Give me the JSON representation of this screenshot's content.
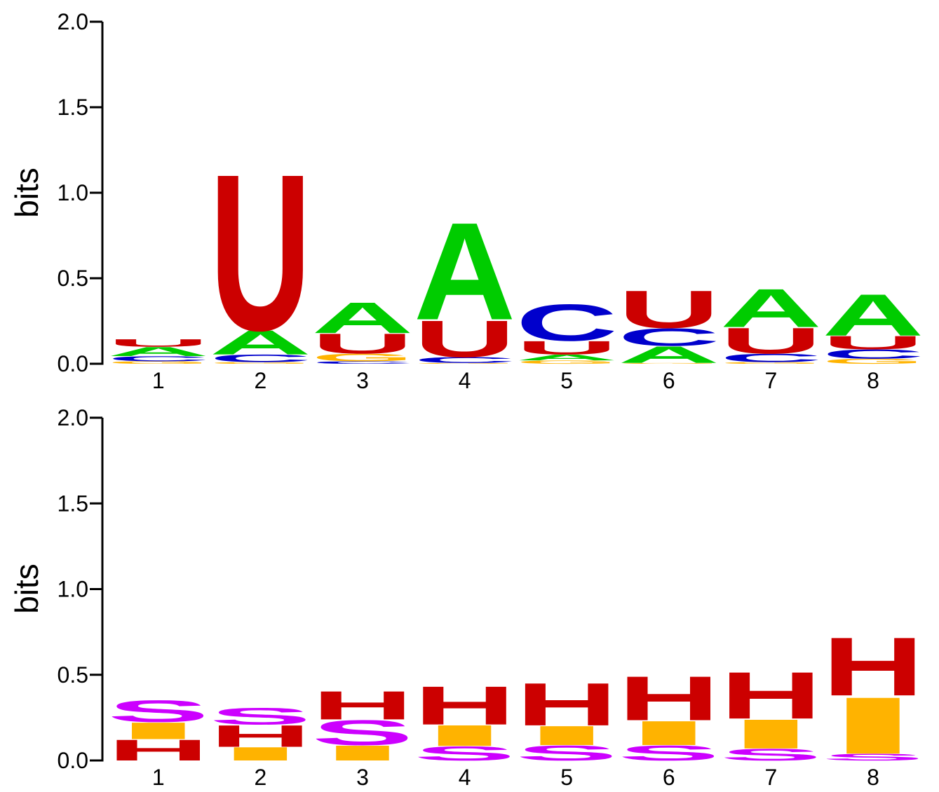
{
  "colors": {
    "A": "#00cc00",
    "C": "#0000cc",
    "G": "#ffb300",
    "U": "#cc0000",
    "H": "#cc0000",
    "I": "#ffb300",
    "S": "#cc00ff"
  },
  "chart_data": [
    {
      "type": "sequence-logo",
      "ylabel": "bits",
      "ylim": [
        0,
        2
      ],
      "yticks": [
        "0.0",
        "0.5",
        "1.0",
        "1.5",
        "2.0"
      ],
      "positions": [
        "1",
        "2",
        "3",
        "4",
        "5",
        "6",
        "7",
        "8"
      ],
      "stacks": [
        [
          {
            "letter": "G",
            "value": 0.015
          },
          {
            "letter": "C",
            "value": 0.03
          },
          {
            "letter": "A",
            "value": 0.055
          },
          {
            "letter": "U",
            "value": 0.045
          }
        ],
        [
          {
            "letter": "G",
            "value": 0.01
          },
          {
            "letter": "C",
            "value": 0.045
          },
          {
            "letter": "A",
            "value": 0.145
          },
          {
            "letter": "U",
            "value": 0.94
          }
        ],
        [
          {
            "letter": "C",
            "value": 0.015
          },
          {
            "letter": "G",
            "value": 0.045
          },
          {
            "letter": "U",
            "value": 0.12
          },
          {
            "letter": "A",
            "value": 0.185
          }
        ],
        [
          {
            "letter": "G",
            "value": 0.005
          },
          {
            "letter": "C",
            "value": 0.035
          },
          {
            "letter": "U",
            "value": 0.22
          },
          {
            "letter": "A",
            "value": 0.585
          }
        ],
        [
          {
            "letter": "G",
            "value": 0.02
          },
          {
            "letter": "A",
            "value": 0.035
          },
          {
            "letter": "U",
            "value": 0.08
          },
          {
            "letter": "C",
            "value": 0.22
          }
        ],
        [
          {
            "letter": "G",
            "value": 0.005
          },
          {
            "letter": "A",
            "value": 0.1
          },
          {
            "letter": "C",
            "value": 0.105
          },
          {
            "letter": "U",
            "value": 0.225
          }
        ],
        [
          {
            "letter": "G",
            "value": 0.01
          },
          {
            "letter": "C",
            "value": 0.05
          },
          {
            "letter": "U",
            "value": 0.155
          },
          {
            "letter": "A",
            "value": 0.23
          }
        ],
        [
          {
            "letter": "G",
            "value": 0.03
          },
          {
            "letter": "C",
            "value": 0.055
          },
          {
            "letter": "U",
            "value": 0.08
          },
          {
            "letter": "A",
            "value": 0.25
          }
        ]
      ]
    },
    {
      "type": "sequence-logo",
      "ylabel": "bits",
      "ylim": [
        0,
        2
      ],
      "yticks": [
        "0.0",
        "0.5",
        "1.0",
        "1.5",
        "2.0"
      ],
      "positions": [
        "1",
        "2",
        "3",
        "4",
        "5",
        "6",
        "7",
        "8"
      ],
      "stacks": [
        [
          {
            "letter": "H",
            "value": 0.125
          },
          {
            "letter": "I",
            "value": 0.1
          },
          {
            "letter": "S",
            "value": 0.13
          }
        ],
        [
          {
            "letter": "I",
            "value": 0.08
          },
          {
            "letter": "H",
            "value": 0.13
          },
          {
            "letter": "S",
            "value": 0.1
          }
        ],
        [
          {
            "letter": "I",
            "value": 0.09
          },
          {
            "letter": "S",
            "value": 0.15
          },
          {
            "letter": "H",
            "value": 0.17
          }
        ],
        [
          {
            "letter": "S",
            "value": 0.085
          },
          {
            "letter": "I",
            "value": 0.125
          },
          {
            "letter": "H",
            "value": 0.23
          }
        ],
        [
          {
            "letter": "S",
            "value": 0.09
          },
          {
            "letter": "I",
            "value": 0.115
          },
          {
            "letter": "H",
            "value": 0.255
          }
        ],
        [
          {
            "letter": "S",
            "value": 0.09
          },
          {
            "letter": "I",
            "value": 0.145
          },
          {
            "letter": "H",
            "value": 0.265
          }
        ],
        [
          {
            "letter": "S",
            "value": 0.07
          },
          {
            "letter": "I",
            "value": 0.175
          },
          {
            "letter": "H",
            "value": 0.28
          }
        ],
        [
          {
            "letter": "S",
            "value": 0.04
          },
          {
            "letter": "I",
            "value": 0.34
          },
          {
            "letter": "H",
            "value": 0.35
          }
        ]
      ]
    }
  ]
}
